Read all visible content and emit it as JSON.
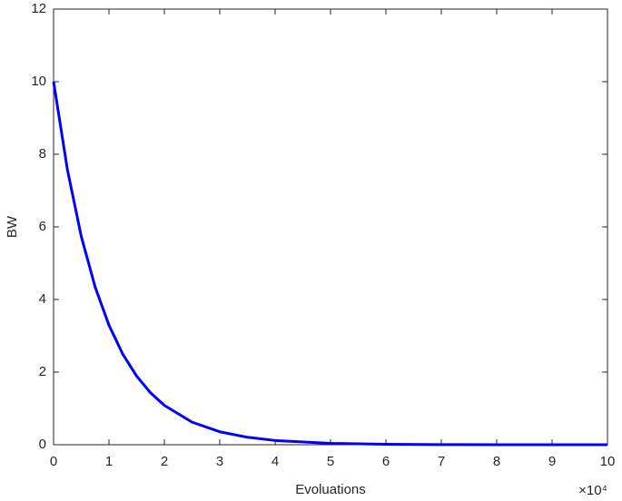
{
  "chart_data": {
    "type": "line",
    "xlabel": "Evoluations",
    "ylabel": "BW",
    "x_exponent_label": "×10⁴",
    "x": [
      0,
      2500,
      5000,
      7500,
      10000,
      12500,
      15000,
      17500,
      20000,
      25000,
      30000,
      35000,
      40000,
      50000,
      60000,
      70000,
      80000,
      90000,
      100000
    ],
    "series": [
      {
        "name": "BW",
        "color": "#0000ff",
        "values": [
          10,
          7.575,
          5.738,
          4.346,
          3.292,
          2.494,
          1.889,
          1.431,
          1.084,
          0.622,
          0.357,
          0.205,
          0.117,
          0.039,
          0.013,
          0.004,
          0.001,
          0,
          0
        ]
      }
    ],
    "xlim": [
      0,
      100000
    ],
    "xticks": [
      {
        "value": 0,
        "label": "0"
      },
      {
        "value": 10000,
        "label": "1"
      },
      {
        "value": 20000,
        "label": "2"
      },
      {
        "value": 30000,
        "label": "3"
      },
      {
        "value": 40000,
        "label": "4"
      },
      {
        "value": 50000,
        "label": "5"
      },
      {
        "value": 60000,
        "label": "6"
      },
      {
        "value": 70000,
        "label": "7"
      },
      {
        "value": 80000,
        "label": "8"
      },
      {
        "value": 90000,
        "label": "9"
      },
      {
        "value": 100000,
        "label": "10"
      }
    ],
    "ylim": [
      0,
      12
    ],
    "yticks": [
      0,
      2,
      4,
      6,
      8,
      10,
      12
    ],
    "grid": false
  }
}
